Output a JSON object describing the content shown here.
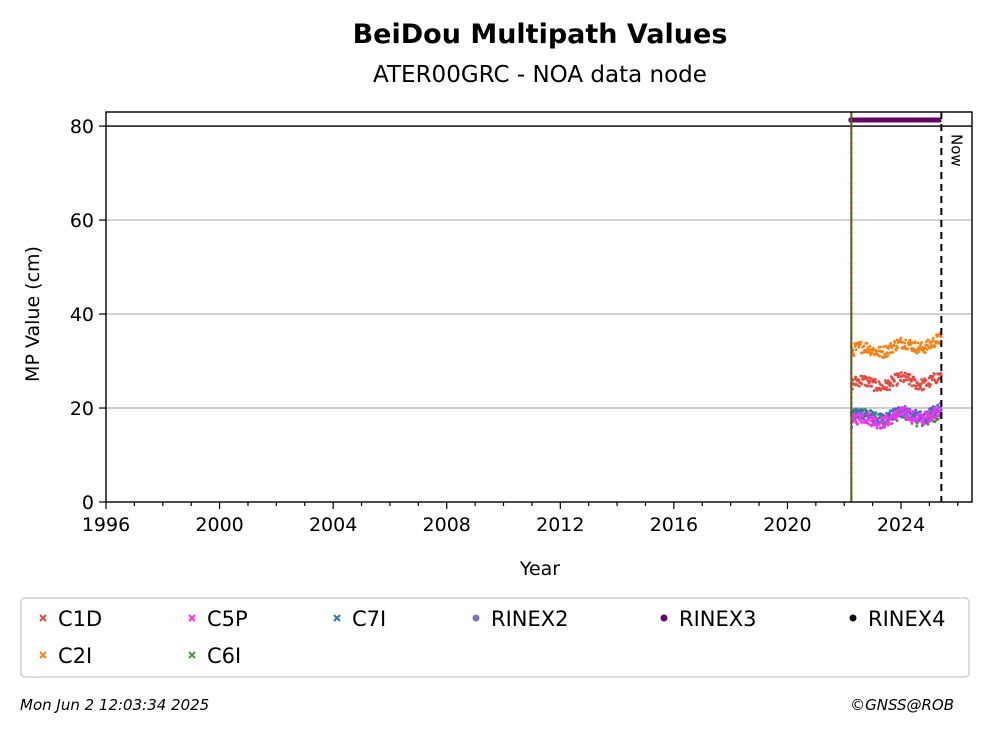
{
  "chart_data": {
    "type": "scatter",
    "title": "BeiDou Multipath Values",
    "subtitle": "ATER00GRC - NOA data node",
    "xlabel": "Year",
    "ylabel": "MP Value (cm)",
    "xlim": [
      1996,
      2026.5
    ],
    "ylim": [
      0,
      83
    ],
    "x_ticks": [
      "1996",
      "2000",
      "2004",
      "2008",
      "2012",
      "2016",
      "2020",
      "2024"
    ],
    "y_ticks": [
      "0",
      "20",
      "40",
      "60",
      "80"
    ],
    "grid": "horizontal",
    "reference_line_y": 80,
    "series": [
      {
        "name": "C1D",
        "color": "#f0453a",
        "marker": "x",
        "x_start": 2022.25,
        "x_end": 2025.42,
        "values_start": 25,
        "values_end": 26
      },
      {
        "name": "C2I",
        "color": "#ff7f0e",
        "marker": "x",
        "x_start": 2022.25,
        "x_end": 2025.42,
        "values_start": 32,
        "values_end": 34
      },
      {
        "name": "C5P",
        "color": "#ff2bff",
        "marker": "x",
        "x_start": 2022.25,
        "x_end": 2025.42,
        "values_start": 17,
        "values_end": 19
      },
      {
        "name": "C6I",
        "color": "#4f8f3f",
        "marker": "x",
        "x_start": 2022.25,
        "x_end": 2025.42,
        "values_start": 18,
        "values_end": 18
      },
      {
        "name": "C7I",
        "color": "#2a78b8",
        "marker": "x",
        "x_start": 2022.25,
        "x_end": 2025.42,
        "values_start": 18,
        "values_end": 19
      },
      {
        "name": "RINEX2",
        "color": "#8070c0",
        "marker": "o"
      },
      {
        "name": "RINEX3",
        "color": "#6a006a",
        "marker": "o",
        "x_start": 2022.25,
        "x_end": 2025.42,
        "y": 81.3
      },
      {
        "name": "RINEX4",
        "color": "#1a0020",
        "marker": "o"
      }
    ],
    "vertical_lines": [
      {
        "x": 2022.25,
        "style": "solid",
        "color": "#1a7f1a"
      },
      {
        "x": 2022.25,
        "style": "dotted",
        "color": "#d62728"
      },
      {
        "x": 2025.42,
        "style": "dashed",
        "color": "#000000",
        "label": "Now"
      }
    ],
    "legend_placement": "bottom"
  },
  "footer": {
    "timestamp": "Mon Jun  2 12:03:34 2025",
    "credit": "©GNSS@ROB"
  }
}
